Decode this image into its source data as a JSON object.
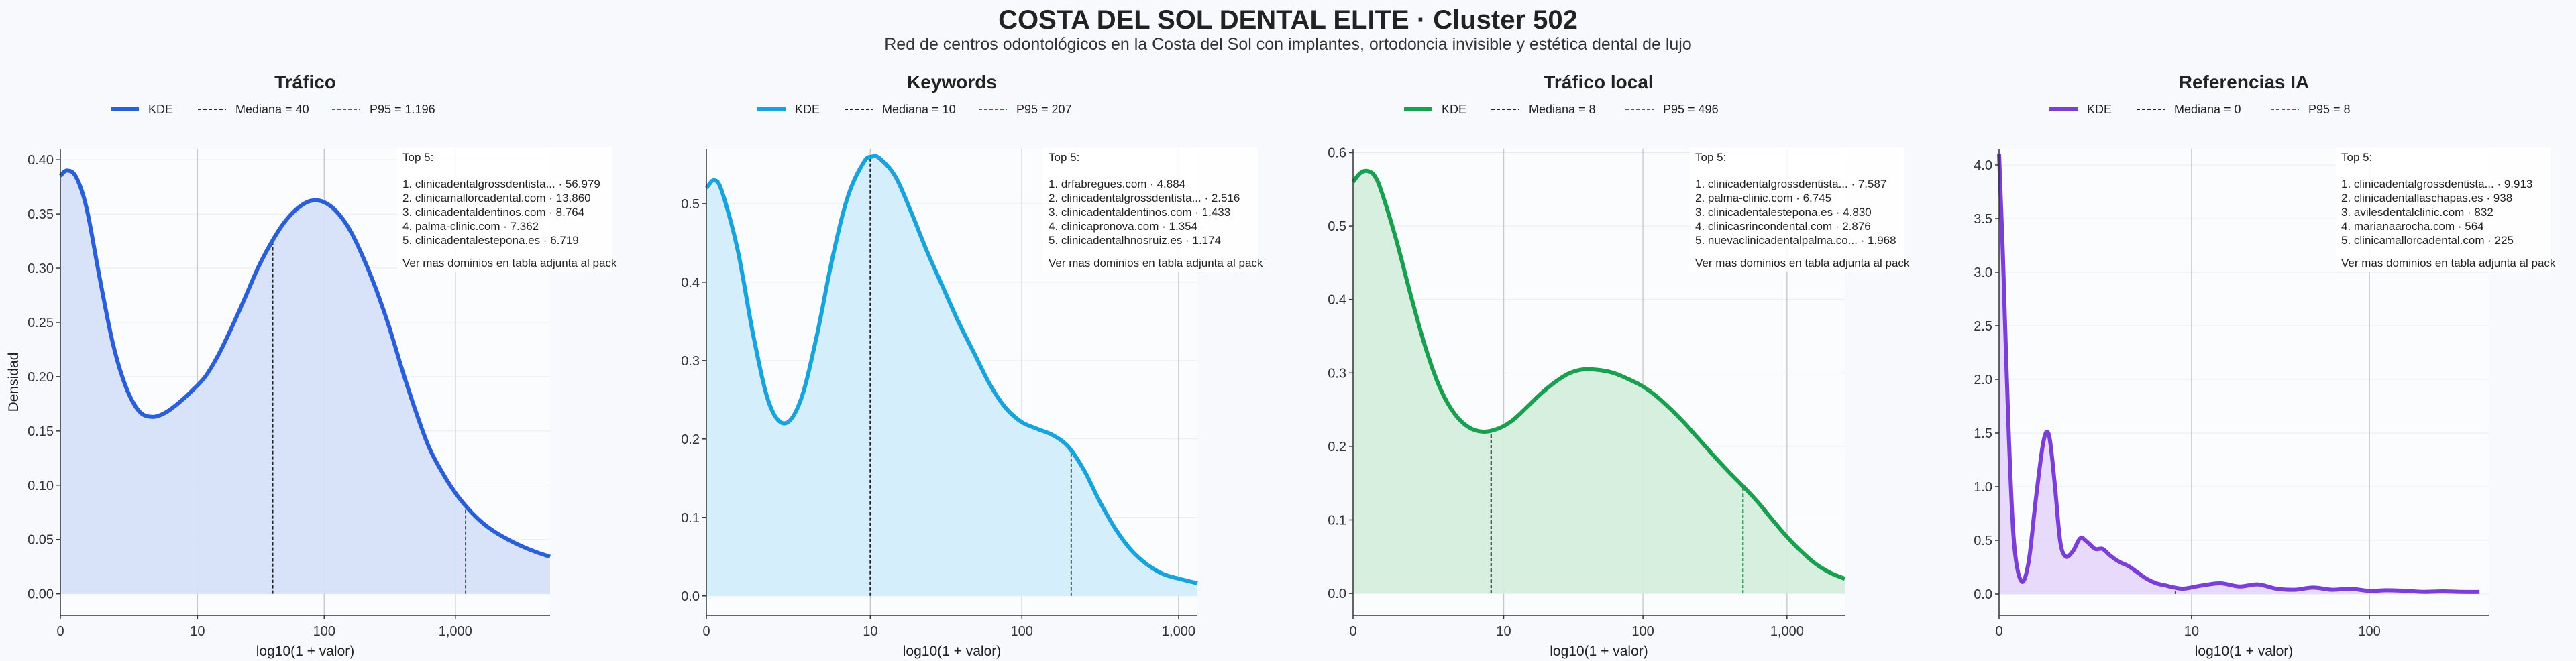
{
  "header": {
    "title": "COSTA DEL SOL DENTAL ELITE · Cluster 502",
    "subtitle": "Red de centros odontológicos en la Costa del Sol con implantes, ortodoncia invisible y estética dental de lujo"
  },
  "chart_data": [
    {
      "type": "area",
      "title": "Tráfico",
      "color": "#2b5fd9",
      "fill": "#d6e1fa",
      "xlabel": "log10(1 + valor)",
      "ylabel": "Densidad",
      "x_scale": "log10(1+x)",
      "xlim": [
        0,
        3.72
      ],
      "ylim": [
        -0.02,
        0.41
      ],
      "x_ticks": [
        {
          "v": 0,
          "label": "0"
        },
        {
          "v": 1.0414,
          "label": "10"
        },
        {
          "v": 2.0043,
          "label": "100"
        },
        {
          "v": 3.0004,
          "label": "1,000"
        }
      ],
      "y_ticks": [
        {
          "v": 0,
          "label": "0.00"
        },
        {
          "v": 0.05,
          "label": "0.05"
        },
        {
          "v": 0.1,
          "label": "0.10"
        },
        {
          "v": 0.15,
          "label": "0.15"
        },
        {
          "v": 0.2,
          "label": "0.20"
        },
        {
          "v": 0.25,
          "label": "0.25"
        },
        {
          "v": 0.3,
          "label": "0.30"
        },
        {
          "v": 0.35,
          "label": "0.35"
        },
        {
          "v": 0.4,
          "label": "0.40"
        }
      ],
      "kde": {
        "x": [
          0,
          0.05,
          0.12,
          0.2,
          0.3,
          0.4,
          0.5,
          0.6,
          0.7,
          0.8,
          0.9,
          1.0,
          1.1,
          1.2,
          1.3,
          1.4,
          1.5,
          1.6,
          1.7,
          1.8,
          1.9,
          2.0,
          2.1,
          2.2,
          2.3,
          2.4,
          2.5,
          2.6,
          2.7,
          2.8,
          2.9,
          3.0,
          3.1,
          3.2,
          3.3,
          3.4,
          3.5,
          3.6,
          3.72
        ],
        "y": [
          0.385,
          0.39,
          0.384,
          0.355,
          0.29,
          0.23,
          0.19,
          0.168,
          0.163,
          0.167,
          0.176,
          0.187,
          0.2,
          0.22,
          0.245,
          0.272,
          0.3,
          0.323,
          0.342,
          0.355,
          0.362,
          0.361,
          0.352,
          0.335,
          0.31,
          0.28,
          0.245,
          0.205,
          0.168,
          0.135,
          0.112,
          0.093,
          0.078,
          0.066,
          0.057,
          0.05,
          0.044,
          0.039,
          0.034
        ]
      },
      "legend": {
        "kde": "KDE",
        "median": "Mediana = 40",
        "p95": "P95 = 1.196"
      },
      "median": 40,
      "p95": 1196,
      "top5_title": "Top 5:",
      "top5": [
        "1. clinicadentalgrossdentista... · 56.979",
        "2. clinicamallorcadental.com · 13.860",
        "3. clinicadentaldentinos.com · 8.764",
        "4. palma-clinic.com · 7.362",
        "5. clinicadentalestepona.es · 6.719"
      ],
      "top5_note": "Ver mas dominios en tabla adjunta al pack"
    },
    {
      "type": "area",
      "title": "Keywords",
      "color": "#18a3dc",
      "fill": "#d2eefb",
      "xlabel": "log10(1 + valor)",
      "ylabel": "",
      "x_scale": "log10(1+x)",
      "xlim": [
        0,
        3.12
      ],
      "ylim": [
        -0.025,
        0.57
      ],
      "x_ticks": [
        {
          "v": 0,
          "label": "0"
        },
        {
          "v": 1.0414,
          "label": "10"
        },
        {
          "v": 2.0043,
          "label": "100"
        },
        {
          "v": 3.0004,
          "label": "1,000"
        }
      ],
      "y_ticks": [
        {
          "v": 0,
          "label": "0.0"
        },
        {
          "v": 0.1,
          "label": "0.1"
        },
        {
          "v": 0.2,
          "label": "0.2"
        },
        {
          "v": 0.3,
          "label": "0.3"
        },
        {
          "v": 0.4,
          "label": "0.4"
        },
        {
          "v": 0.5,
          "label": "0.5"
        }
      ],
      "kde": {
        "x": [
          0,
          0.05,
          0.1,
          0.2,
          0.3,
          0.4,
          0.5,
          0.6,
          0.7,
          0.8,
          0.9,
          1.0,
          1.05,
          1.1,
          1.2,
          1.3,
          1.4,
          1.5,
          1.6,
          1.7,
          1.8,
          1.9,
          2.0,
          2.1,
          2.2,
          2.3,
          2.4,
          2.5,
          2.6,
          2.7,
          2.8,
          2.9,
          3.0,
          3.12
        ],
        "y": [
          0.52,
          0.53,
          0.515,
          0.44,
          0.33,
          0.245,
          0.22,
          0.25,
          0.33,
          0.43,
          0.51,
          0.553,
          0.56,
          0.558,
          0.535,
          0.49,
          0.44,
          0.395,
          0.35,
          0.31,
          0.27,
          0.24,
          0.222,
          0.213,
          0.205,
          0.19,
          0.16,
          0.12,
          0.085,
          0.058,
          0.04,
          0.028,
          0.022,
          0.016
        ]
      },
      "legend": {
        "kde": "KDE",
        "median": "Mediana = 10",
        "p95": "P95 = 207"
      },
      "median": 10,
      "p95": 207,
      "top5_title": "Top 5:",
      "top5": [
        "1. drfabregues.com · 4.884",
        "2. clinicadentalgrossdentista... · 2.516",
        "3. clinicadentaldentinos.com · 1.433",
        "4. clinicapronova.com · 1.354",
        "5. clinicadentalhnosruiz.es · 1.174"
      ],
      "top5_note": "Ver mas dominios en tabla adjunta al pack"
    },
    {
      "type": "area",
      "title": "Tráfico local",
      "color": "#18a050",
      "fill": "#d4eedc",
      "xlabel": "log10(1 + valor)",
      "ylabel": "",
      "x_scale": "log10(1+x)",
      "xlim": [
        0,
        3.4
      ],
      "ylim": [
        -0.03,
        0.605
      ],
      "x_ticks": [
        {
          "v": 0,
          "label": "0"
        },
        {
          "v": 1.0414,
          "label": "10"
        },
        {
          "v": 2.0043,
          "label": "100"
        },
        {
          "v": 3.0004,
          "label": "1,000"
        }
      ],
      "y_ticks": [
        {
          "v": 0,
          "label": "0.0"
        },
        {
          "v": 0.1,
          "label": "0.1"
        },
        {
          "v": 0.2,
          "label": "0.2"
        },
        {
          "v": 0.3,
          "label": "0.3"
        },
        {
          "v": 0.4,
          "label": "0.4"
        },
        {
          "v": 0.5,
          "label": "0.5"
        },
        {
          "v": 0.6,
          "label": "0.6"
        }
      ],
      "kde": {
        "x": [
          0,
          0.05,
          0.1,
          0.15,
          0.2,
          0.3,
          0.4,
          0.5,
          0.6,
          0.7,
          0.8,
          0.9,
          1.0,
          1.1,
          1.2,
          1.3,
          1.4,
          1.5,
          1.6,
          1.7,
          1.8,
          1.9,
          2.0,
          2.1,
          2.2,
          2.3,
          2.4,
          2.5,
          2.6,
          2.7,
          2.8,
          2.9,
          3.0,
          3.1,
          3.2,
          3.3,
          3.4
        ],
        "y": [
          0.56,
          0.572,
          0.575,
          0.568,
          0.545,
          0.48,
          0.405,
          0.335,
          0.28,
          0.245,
          0.226,
          0.22,
          0.224,
          0.235,
          0.253,
          0.272,
          0.288,
          0.3,
          0.305,
          0.304,
          0.3,
          0.292,
          0.282,
          0.268,
          0.25,
          0.23,
          0.208,
          0.186,
          0.165,
          0.145,
          0.124,
          0.1,
          0.077,
          0.057,
          0.04,
          0.028,
          0.02
        ]
      },
      "legend": {
        "kde": "KDE",
        "median": "Mediana = 8",
        "p95": "P95 = 496"
      },
      "median": 8,
      "p95": 496,
      "top5_title": "Top 5:",
      "top5": [
        "1. clinicadentalgrossdentista... · 7.587",
        "2. palma-clinic.com · 6.745",
        "3. clinicadentalestepona.es · 4.830",
        "4. clinicasrincondental.com · 2.876",
        "5. nuevaclinicadentalpalma.co... · 1.968"
      ],
      "top5_note": "Ver mas dominios en tabla adjunta al pack"
    },
    {
      "type": "area",
      "title": "Referencias IA",
      "color": "#7b3fd8",
      "fill": "#e6d8fa",
      "xlabel": "log10(1 + valor)",
      "ylabel": "",
      "x_scale": "log10(1+x)",
      "xlim": [
        0,
        2.65
      ],
      "ylim": [
        -0.2,
        4.15
      ],
      "x_ticks": [
        {
          "v": 0,
          "label": "0"
        },
        {
          "v": 1.0414,
          "label": "10"
        },
        {
          "v": 2.0043,
          "label": "100"
        }
      ],
      "y_ticks": [
        {
          "v": 0,
          "label": "0.0"
        },
        {
          "v": 0.5,
          "label": "0.5"
        },
        {
          "v": 1.0,
          "label": "1.0"
        },
        {
          "v": 1.5,
          "label": "1.5"
        },
        {
          "v": 2.0,
          "label": "2.0"
        },
        {
          "v": 2.5,
          "label": "2.5"
        },
        {
          "v": 3.0,
          "label": "3.0"
        },
        {
          "v": 3.5,
          "label": "3.5"
        },
        {
          "v": 4.0,
          "label": "4.0"
        }
      ],
      "kde": {
        "x": [
          0,
          0.02,
          0.05,
          0.08,
          0.12,
          0.16,
          0.2,
          0.24,
          0.27,
          0.3,
          0.33,
          0.36,
          0.4,
          0.44,
          0.48,
          0.52,
          0.56,
          0.6,
          0.65,
          0.7,
          0.75,
          0.8,
          0.85,
          0.9,
          0.95,
          1.0,
          1.1,
          1.2,
          1.3,
          1.4,
          1.5,
          1.6,
          1.7,
          1.8,
          1.9,
          2.0,
          2.1,
          2.2,
          2.3,
          2.4,
          2.5,
          2.6
        ],
        "y": [
          4.1,
          3.2,
          1.6,
          0.5,
          0.12,
          0.3,
          0.9,
          1.42,
          1.48,
          1.05,
          0.5,
          0.35,
          0.4,
          0.52,
          0.48,
          0.42,
          0.42,
          0.36,
          0.3,
          0.26,
          0.2,
          0.14,
          0.1,
          0.08,
          0.06,
          0.05,
          0.08,
          0.1,
          0.07,
          0.09,
          0.05,
          0.04,
          0.06,
          0.04,
          0.05,
          0.03,
          0.035,
          0.03,
          0.02,
          0.025,
          0.02,
          0.02
        ]
      },
      "legend": {
        "kde": "KDE",
        "median": "Mediana = 0",
        "p95": "P95 = 8"
      },
      "median": 0,
      "p95": 8,
      "top5_title": "Top 5:",
      "top5": [
        "1. clinicadentalgrossdentista... · 9.913",
        "2. clinicadentallaschapas.es · 938",
        "3. avilesdentalclinic.com · 832",
        "4. marianaarocha.com · 564",
        "5. clinicamallorcadental.com · 225"
      ],
      "top5_note": "Ver mas dominios en tabla adjunta al pack"
    }
  ]
}
